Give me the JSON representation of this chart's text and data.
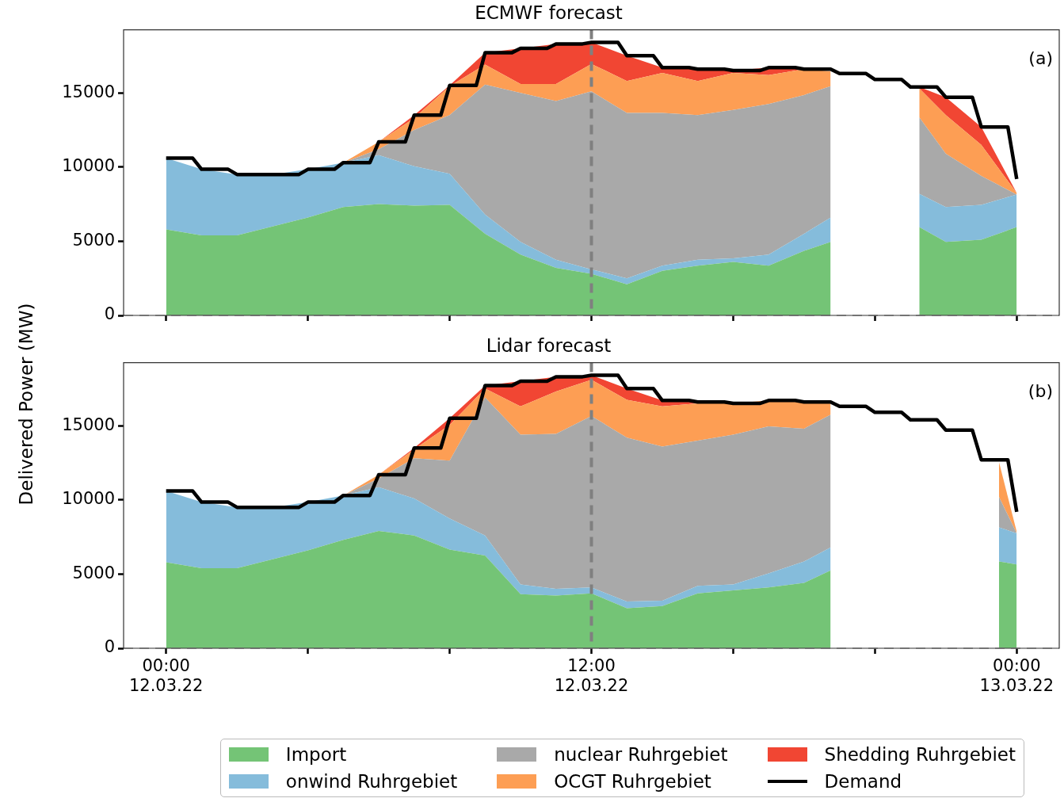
{
  "chart_data": [
    {
      "type": "area",
      "title": "ECMWF forecast",
      "ylabel": "Delivered Power (MW)",
      "stacked": true,
      "marker": "none",
      "line_style": "solid",
      "grid": false,
      "legend": false,
      "tick_labels": "y",
      "annotations": [
        "(a)"
      ],
      "x": [
        "--03-12T00:00",
        "--03-12T01:00",
        "--03-12T02:00",
        "--03-12T03:00",
        "--03-12T04:00",
        "--03-12T05:00",
        "--03-12T06:00",
        "--03-12T07:00",
        "--03-12T08:00",
        "--03-12T09:00",
        "--03-12T10:00",
        "--03-12T11:00",
        "--03-12T12:00",
        "--03-12T13:00",
        "--03-12T14:00",
        "--03-12T15:00",
        "--03-12T16:00",
        "--03-12T17:00",
        "--03-12T18:00",
        "--03-12T18:45",
        "--03-12T20:00",
        "--03-12T21:15",
        "--03-12T22:00",
        "--03-12T23:00",
        "--03-13T00:00"
      ],
      "xlim": [
        "--03-11T22:48",
        "--03-13T01:12"
      ],
      "ylim": [
        0,
        19250
      ],
      "yticks": [
        0,
        5000,
        10000,
        15000
      ],
      "xticks": [
        {
          "value": "--03-12T00:00",
          "label": null
        },
        {
          "value": "--03-12T04:00",
          "label": null
        },
        {
          "value": "--03-12T08:00",
          "label": null
        },
        {
          "value": "--03-12T12:00",
          "label": null
        },
        {
          "value": "--03-12T16:00",
          "label": null
        },
        {
          "value": "--03-12T20:00",
          "label": null
        },
        {
          "value": "--03-13T00:00",
          "label": null
        }
      ],
      "ref_lines": [
        {
          "axis": "x",
          "value": "--03-12T12:00",
          "color": "#808080",
          "line_style": "dashed"
        },
        {
          "axis": "y",
          "value": 0,
          "color": "#a0a0a0",
          "line_style": "dashed"
        }
      ],
      "series": [
        {
          "type": "area",
          "color": "#74c476",
          "values": [
            5800,
            5400,
            5400,
            6000,
            6600,
            7300,
            7500,
            7400,
            7450,
            5500,
            4100,
            3200,
            2800,
            2100,
            3000,
            3350,
            3600,
            3350,
            4350,
            4950,
            null,
            5950,
            4950,
            5100,
            5950
          ]
        },
        {
          "type": "area",
          "color": "#85bcdb",
          "values": [
            4800,
            4450,
            4100,
            3500,
            3250,
            3000,
            3300,
            2650,
            2100,
            1300,
            850,
            550,
            300,
            400,
            350,
            400,
            250,
            750,
            1150,
            1650,
            null,
            2250,
            2350,
            2350,
            2200
          ]
        },
        {
          "type": "area",
          "color": "#a9a9a9",
          "values": [
            0,
            0,
            0,
            0,
            0,
            0,
            400,
            2450,
            3950,
            8750,
            10050,
            10700,
            12000,
            11150,
            10300,
            9750,
            10000,
            10150,
            9350,
            8850,
            null,
            5150,
            3600,
            1950,
            0
          ]
        },
        {
          "type": "area",
          "color": "#fd9e54",
          "values": [
            0,
            0,
            0,
            0,
            0,
            0,
            500,
            800,
            1950,
            1350,
            600,
            1150,
            1850,
            2150,
            2700,
            2300,
            2500,
            1950,
            1750,
            1000,
            null,
            1950,
            2600,
            2100,
            100
          ]
        },
        {
          "type": "area",
          "color": "#f14633",
          "values": [
            0,
            0,
            0,
            0,
            0,
            0,
            0,
            200,
            50,
            800,
            2400,
            2700,
            1450,
            1700,
            350,
            800,
            150,
            500,
            0,
            0,
            null,
            100,
            1200,
            1200,
            0
          ]
        },
        {
          "type": "line",
          "color": "#000000",
          "x": [
            "--03-12T00:00",
            "--03-12T00:45",
            "--03-12T01:00",
            "--03-12T01:45",
            "--03-12T02:00",
            "--03-12T02:45",
            "--03-12T03:00",
            "--03-12T03:45",
            "--03-12T04:00",
            "--03-12T04:45",
            "--03-12T05:00",
            "--03-12T05:45",
            "--03-12T06:00",
            "--03-12T06:45",
            "--03-12T07:00",
            "--03-12T07:45",
            "--03-12T08:00",
            "--03-12T08:45",
            "--03-12T09:00",
            "--03-12T09:45",
            "--03-12T10:00",
            "--03-12T10:45",
            "--03-12T11:00",
            "--03-12T11:45",
            "--03-12T12:00",
            "--03-12T12:45",
            "--03-12T13:00",
            "--03-12T13:45",
            "--03-12T14:00",
            "--03-12T14:45",
            "--03-12T15:00",
            "--03-12T15:45",
            "--03-12T16:00",
            "--03-12T16:45",
            "--03-12T17:00",
            "--03-12T17:45",
            "--03-12T18:00",
            "--03-12T18:45",
            "--03-12T19:00",
            "--03-12T19:45",
            "--03-12T20:00",
            "--03-12T20:45",
            "--03-12T21:00",
            "--03-12T21:45",
            "--03-12T22:00",
            "--03-12T22:45",
            "--03-12T23:00",
            "--03-12T23:45",
            "--03-13T00:00"
          ],
          "values": [
            10600,
            10600,
            9850,
            9850,
            9500,
            9500,
            9500,
            9500,
            9850,
            9850,
            10300,
            10300,
            11700,
            11700,
            13500,
            13500,
            15500,
            15500,
            17700,
            17700,
            18000,
            18000,
            18300,
            18300,
            18400,
            18400,
            17500,
            17500,
            16700,
            16700,
            16600,
            16600,
            16500,
            16500,
            16700,
            16700,
            16600,
            16600,
            16300,
            16300,
            15900,
            15900,
            15400,
            15400,
            14700,
            14700,
            12700,
            12700,
            9200
          ]
        }
      ]
    },
    {
      "type": "area",
      "title": "Lidar forecast",
      "stacked": true,
      "marker": "none",
      "line_style": "solid",
      "grid": false,
      "legend": "bottom",
      "annotations": [
        "(b)"
      ],
      "x": [
        "--03-12T00:00",
        "--03-12T01:00",
        "--03-12T02:00",
        "--03-12T03:00",
        "--03-12T04:00",
        "--03-12T05:00",
        "--03-12T06:00",
        "--03-12T07:00",
        "--03-12T08:00",
        "--03-12T09:00",
        "--03-12T10:00",
        "--03-12T11:00",
        "--03-12T12:00",
        "--03-12T13:00",
        "--03-12T14:00",
        "--03-12T15:00",
        "--03-12T16:00",
        "--03-12T17:00",
        "--03-12T18:00",
        "--03-12T18:45",
        "--03-12T21:00",
        "--03-12T23:30",
        "--03-13T00:00"
      ],
      "xlim": [
        "--03-11T22:48",
        "--03-13T01:12"
      ],
      "ylim": [
        0,
        19250
      ],
      "yticks": [
        0,
        5000,
        10000,
        15000
      ],
      "xticks": [
        {
          "value": "--03-12T00:00",
          "label": "00:00\n12.03.22"
        },
        {
          "value": "--03-12T04:00",
          "label": null
        },
        {
          "value": "--03-12T08:00",
          "label": null
        },
        {
          "value": "--03-12T12:00",
          "label": "12:00\n12.03.22"
        },
        {
          "value": "--03-12T16:00",
          "label": null
        },
        {
          "value": "--03-12T20:00",
          "label": null
        },
        {
          "value": "--03-13T00:00",
          "label": "00:00\n13.03.22"
        }
      ],
      "ref_lines": [
        {
          "axis": "x",
          "value": "--03-12T12:00",
          "color": "#808080",
          "line_style": "dashed"
        },
        {
          "axis": "y",
          "value": 0,
          "color": "#a0a0a0",
          "line_style": "dashed"
        }
      ],
      "series": [
        {
          "name": "Import",
          "type": "area",
          "color": "#74c476",
          "values": [
            5800,
            5400,
            5400,
            6000,
            6600,
            7300,
            7900,
            7600,
            6650,
            6250,
            3650,
            3550,
            3700,
            2700,
            2850,
            3700,
            3900,
            4100,
            4400,
            5250,
            null,
            5850,
            5650
          ]
        },
        {
          "name": "onwind Ruhrgebiet",
          "type": "area",
          "color": "#85bcdb",
          "values": [
            4800,
            4450,
            4100,
            3500,
            3250,
            3000,
            2950,
            2500,
            2100,
            1350,
            650,
            450,
            400,
            450,
            350,
            500,
            400,
            950,
            1450,
            1550,
            null,
            2300,
            2100
          ]
        },
        {
          "name": "nuclear Ruhrgebiet",
          "type": "area",
          "color": "#a9a9a9",
          "values": [
            0,
            0,
            0,
            0,
            0,
            0,
            600,
            2700,
            3900,
            9300,
            10100,
            10450,
            11550,
            11050,
            10400,
            9800,
            10100,
            9900,
            8950,
            8950,
            null,
            2050,
            0
          ]
        },
        {
          "name": "OCGT Ruhrgebiet",
          "type": "area",
          "color": "#fd9e54",
          "values": [
            0,
            0,
            0,
            0,
            0,
            0,
            250,
            600,
            2400,
            600,
            1900,
            2850,
            2450,
            2550,
            2700,
            2500,
            2100,
            1750,
            1800,
            850,
            null,
            2350,
            100
          ]
        },
        {
          "name": "Shedding Ruhrgebiet",
          "type": "area",
          "color": "#f14633",
          "values": [
            0,
            0,
            0,
            0,
            0,
            0,
            0,
            100,
            450,
            200,
            1700,
            1000,
            300,
            750,
            400,
            100,
            0,
            0,
            0,
            0,
            null,
            null,
            null
          ]
        },
        {
          "name": "Demand",
          "type": "line",
          "color": "#000000",
          "x": [
            "--03-12T00:00",
            "--03-12T00:45",
            "--03-12T01:00",
            "--03-12T01:45",
            "--03-12T02:00",
            "--03-12T02:45",
            "--03-12T03:00",
            "--03-12T03:45",
            "--03-12T04:00",
            "--03-12T04:45",
            "--03-12T05:00",
            "--03-12T05:45",
            "--03-12T06:00",
            "--03-12T06:45",
            "--03-12T07:00",
            "--03-12T07:45",
            "--03-12T08:00",
            "--03-12T08:45",
            "--03-12T09:00",
            "--03-12T09:45",
            "--03-12T10:00",
            "--03-12T10:45",
            "--03-12T11:00",
            "--03-12T11:45",
            "--03-12T12:00",
            "--03-12T12:45",
            "--03-12T13:00",
            "--03-12T13:45",
            "--03-12T14:00",
            "--03-12T14:45",
            "--03-12T15:00",
            "--03-12T15:45",
            "--03-12T16:00",
            "--03-12T16:45",
            "--03-12T17:00",
            "--03-12T17:45",
            "--03-12T18:00",
            "--03-12T18:45",
            "--03-12T19:00",
            "--03-12T19:45",
            "--03-12T20:00",
            "--03-12T20:45",
            "--03-12T21:00",
            "--03-12T21:45",
            "--03-12T22:00",
            "--03-12T22:45",
            "--03-12T23:00",
            "--03-12T23:45",
            "--03-13T00:00"
          ],
          "values": [
            10600,
            10600,
            9850,
            9850,
            9500,
            9500,
            9500,
            9500,
            9850,
            9850,
            10300,
            10300,
            11700,
            11700,
            13500,
            13500,
            15500,
            15500,
            17700,
            17700,
            18000,
            18000,
            18300,
            18300,
            18400,
            18400,
            17500,
            17500,
            16700,
            16700,
            16600,
            16600,
            16500,
            16500,
            16700,
            16700,
            16600,
            16600,
            16300,
            16300,
            15900,
            15900,
            15400,
            15400,
            14700,
            14700,
            12700,
            12700,
            9200
          ]
        }
      ]
    }
  ]
}
